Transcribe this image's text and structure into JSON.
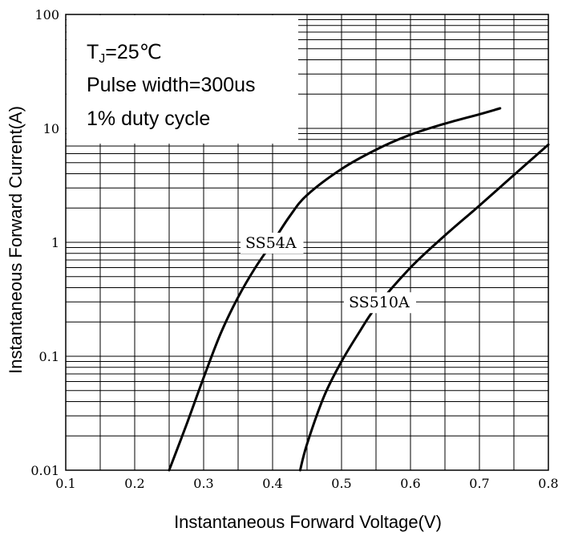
{
  "chart_data": {
    "type": "line",
    "xlabel": "Instantaneous Forward Voltage(V)",
    "ylabel": "Instantaneous Forward Current(A)",
    "xlim": [
      0.1,
      0.8
    ],
    "ylim": [
      0.01,
      100
    ],
    "yscale": "log",
    "grid": true,
    "x_ticks": [
      0.1,
      0.2,
      0.3,
      0.4,
      0.5,
      0.6,
      0.7,
      0.8
    ],
    "x_tick_labels": [
      "0.1",
      "0.2",
      "0.3",
      "0.4",
      "0.5",
      "0.6",
      "0.7",
      "0.8"
    ],
    "y_ticks": [
      0.01,
      0.1,
      1,
      10,
      100
    ],
    "y_tick_labels": [
      "0.01",
      "0.1",
      "1",
      "10",
      "100"
    ],
    "annotation": {
      "line1": {
        "base": "T",
        "sub": "J",
        "rest": "=25℃"
      },
      "line2": "Pulse width=300us",
      "line3": "1% duty cycle"
    },
    "series": [
      {
        "name": "SS54A",
        "x": [
          0.25,
          0.275,
          0.3,
          0.325,
          0.35,
          0.375,
          0.4,
          0.425,
          0.45,
          0.5,
          0.55,
          0.6,
          0.65,
          0.7,
          0.73
        ],
        "y": [
          0.01,
          0.025,
          0.065,
          0.16,
          0.33,
          0.6,
          1.0,
          1.7,
          2.6,
          4.4,
          6.5,
          8.8,
          11.0,
          13.3,
          15.0
        ],
        "label_at": [
          0.4,
          1.0
        ]
      },
      {
        "name": "SS510A",
        "x": [
          0.44,
          0.45,
          0.475,
          0.5,
          0.525,
          0.55,
          0.6,
          0.65,
          0.7,
          0.75,
          0.8
        ],
        "y": [
          0.01,
          0.017,
          0.045,
          0.09,
          0.16,
          0.27,
          0.6,
          1.15,
          2.1,
          3.9,
          7.2
        ],
        "label_at": [
          0.55,
          0.3
        ]
      }
    ]
  }
}
